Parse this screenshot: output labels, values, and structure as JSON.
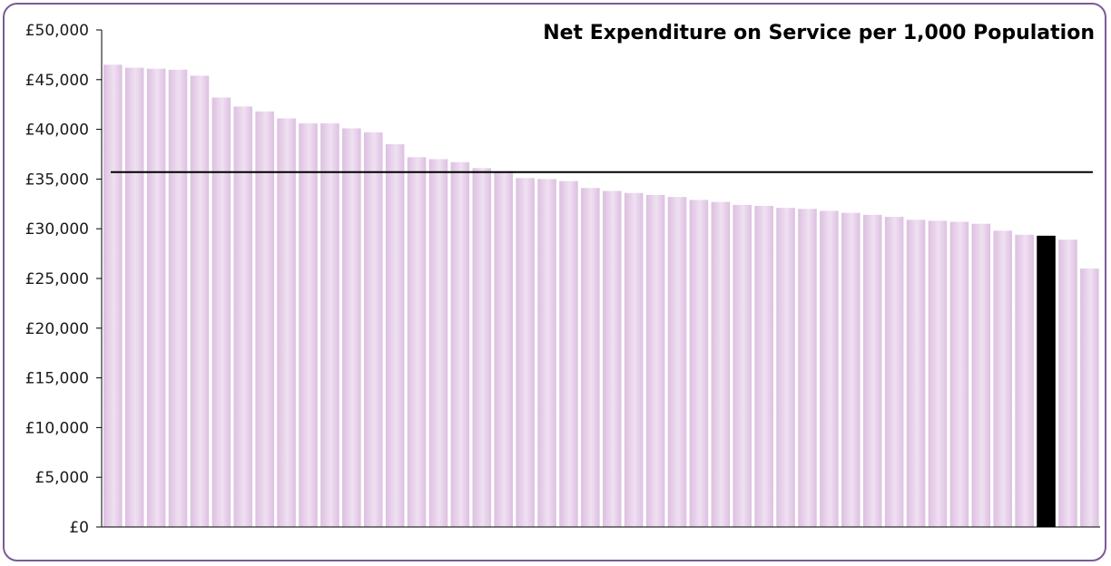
{
  "chart_data": {
    "type": "bar",
    "title": "Net Expenditure on Service per 1,000 Population",
    "xlabel": "",
    "ylabel": "",
    "ylim": [
      0,
      50000
    ],
    "y_ticks": [
      "£0",
      "£5,000",
      "£10,000",
      "£15,000",
      "£20,000",
      "£25,000",
      "£30,000",
      "£35,000",
      "£40,000",
      "£45,000",
      "£50,000"
    ],
    "y_tick_values": [
      0,
      5000,
      10000,
      15000,
      20000,
      25000,
      30000,
      35000,
      40000,
      45000,
      50000
    ],
    "grid": false,
    "legend": "none",
    "values": [
      46500,
      46200,
      46100,
      46000,
      45400,
      43200,
      42300,
      41800,
      41100,
      40600,
      40600,
      40100,
      39700,
      38500,
      37200,
      37000,
      36700,
      36100,
      35800,
      35100,
      35000,
      34800,
      34100,
      33800,
      33600,
      33400,
      33200,
      32900,
      32700,
      32400,
      32300,
      32100,
      32000,
      31800,
      31600,
      31400,
      31200,
      30900,
      30800,
      30700,
      30500,
      29800,
      29400,
      29300,
      28900,
      26000
    ],
    "highlight_index": 43,
    "reference_line": 35700,
    "colors": {
      "bar": "#dcc0e0",
      "bar_light": "#f0e0f2",
      "highlight": "#000000",
      "reference_line": "#000000",
      "axis": "#000000",
      "frame": "#7b5a96"
    }
  }
}
